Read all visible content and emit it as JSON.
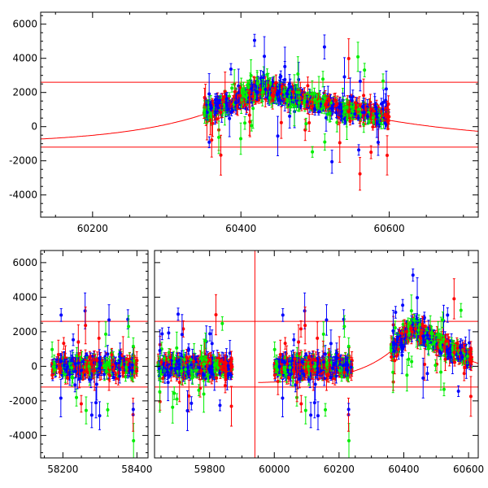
{
  "chart_data": [
    {
      "type": "scatter",
      "xlim": [
        60130,
        60720
      ],
      "ylim": [
        -5300,
        6700
      ],
      "x_ticks": [
        60200,
        60400,
        60600
      ],
      "x_tick_labels": [
        "60200",
        "60400",
        "60600"
      ],
      "y_ticks": [
        -4000,
        -2000,
        0,
        2000,
        4000,
        6000
      ],
      "y_tick_labels": [
        "-4000",
        "-2000",
        "0",
        "2000",
        "4000",
        "6000"
      ],
      "hlines": [
        2600,
        -1200
      ],
      "model_curve": {
        "peak_x": 60430,
        "peak_y": 2350,
        "left_scale": 120,
        "right_scale": 190,
        "baseline": -1000
      },
      "data_range": [
        60350,
        60600
      ],
      "series_colors": [
        "#ff0000",
        "#0000ff",
        "#00ee00"
      ],
      "grid": false,
      "legend": "none"
    },
    {
      "type": "scatter",
      "broken_axis": true,
      "segments": [
        {
          "xlim": [
            58140,
            58430
          ],
          "x_ticks": [
            58200,
            58400
          ],
          "x_tick_labels": [
            "58200",
            "58400"
          ],
          "data_range": [
            58170,
            58400
          ],
          "mean": 0
        },
        {
          "xlim": [
            59630,
            60630
          ],
          "x_ticks": [
            59800,
            60000,
            60200,
            60400,
            60600
          ],
          "x_tick_labels": [
            "59800",
            "60000",
            "60200",
            "60400",
            "60600"
          ],
          "data_ranges": [
            [
              59640,
              59870
            ],
            [
              60000,
              60240
            ],
            [
              60360,
              60610
            ]
          ]
        }
      ],
      "ylim": [
        -5300,
        6700
      ],
      "y_ticks": [
        -4000,
        -2000,
        0,
        2000,
        4000,
        6000
      ],
      "y_tick_labels": [
        "-4000",
        "-2000",
        "0",
        "2000",
        "4000",
        "6000"
      ],
      "hlines": [
        2600,
        -1200
      ],
      "vline_x": 59940,
      "series_colors": [
        "#ff0000",
        "#0000ff",
        "#00ee00"
      ],
      "grid": false,
      "legend": "none"
    }
  ]
}
